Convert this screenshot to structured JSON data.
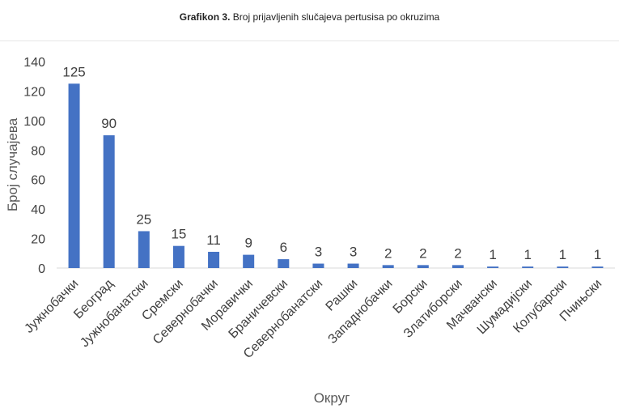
{
  "header": {
    "title_bold": "Grafikon 3.",
    "title_rest": "Broj prijavljenih slučajeva pertusisa po okruzima"
  },
  "colors": {
    "bar": "#4472C4",
    "axis": "#d9d9d9",
    "text": "#404040"
  },
  "chart_data": {
    "type": "bar",
    "title": "Grafikon 3. Broj prijavljenih slučajeva pertusisa po okruzima",
    "xlabel": "Округ",
    "ylabel": "Број случајева",
    "ylim": [
      0,
      140
    ],
    "yticks": [
      0,
      20,
      40,
      60,
      80,
      100,
      120,
      140
    ],
    "grid": false,
    "categories": [
      "Јужнобачки",
      "Београд",
      "Јужнобанатски",
      "Сремски",
      "Севернобачки",
      "Моравички",
      "Браничевски",
      "Севернобанатски",
      "Рашки",
      "Западнобачки",
      "Борски",
      "Златиборски",
      "Мачвански",
      "Шумадијски",
      "Колубарски",
      "Пчињски"
    ],
    "values": [
      125,
      90,
      25,
      15,
      11,
      9,
      6,
      3,
      3,
      2,
      2,
      2,
      1,
      1,
      1,
      1
    ]
  }
}
